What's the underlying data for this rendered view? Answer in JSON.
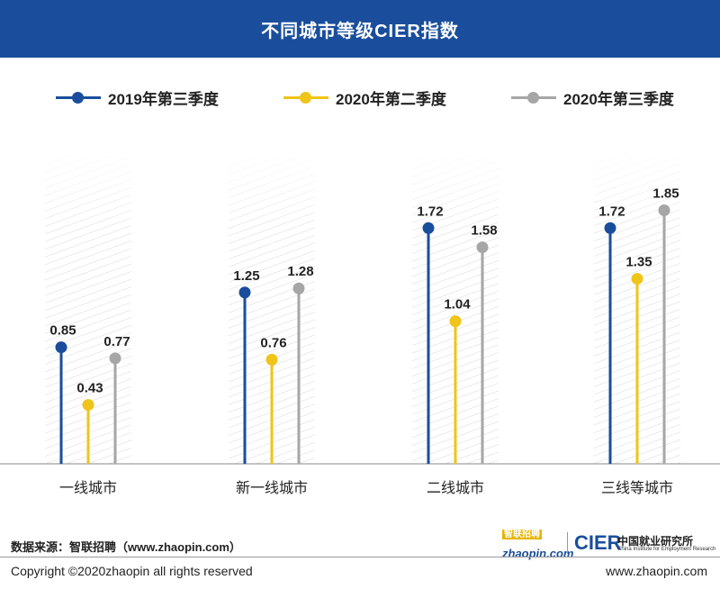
{
  "header": {
    "title": "不同城市等级CIER指数"
  },
  "legend": [
    {
      "label": "2019年第三季度",
      "color": "#1a4e9c"
    },
    {
      "label": "2020年第二季度",
      "color": "#f0c419"
    },
    {
      "label": "2020年第三季度",
      "color": "#a6a6a6"
    }
  ],
  "chart_data": {
    "type": "lollipop",
    "title": "不同城市等级CIER指数",
    "categories": [
      "一线城市",
      "新一线城市",
      "二线城市",
      "三线等城市"
    ],
    "series": [
      {
        "name": "2019年第三季度",
        "color": "#1a4e9c",
        "values": [
          0.85,
          1.25,
          1.72,
          1.72
        ]
      },
      {
        "name": "2020年第二季度",
        "color": "#f0c419",
        "values": [
          0.43,
          0.76,
          1.04,
          1.35
        ]
      },
      {
        "name": "2020年第三季度",
        "color": "#a6a6a6",
        "values": [
          0.77,
          1.28,
          1.58,
          1.85
        ]
      }
    ],
    "ylim": [
      0,
      2.3
    ],
    "legend_position": "top",
    "grid": false
  },
  "footer": {
    "source": "数据来源：智联招聘（www.zhaopin.com）",
    "copyright": "Copyright ©2020zhaopin all rights reserved",
    "website": "www.zhaopin.com",
    "logo_zhaopin": "zhaopin.com",
    "logo_zhaopin_tag": "智联招聘",
    "logo_cier": "CIER",
    "logo_cier_cn": "中国就业研究所",
    "logo_cier_en": "China Institute for Employment Research"
  }
}
